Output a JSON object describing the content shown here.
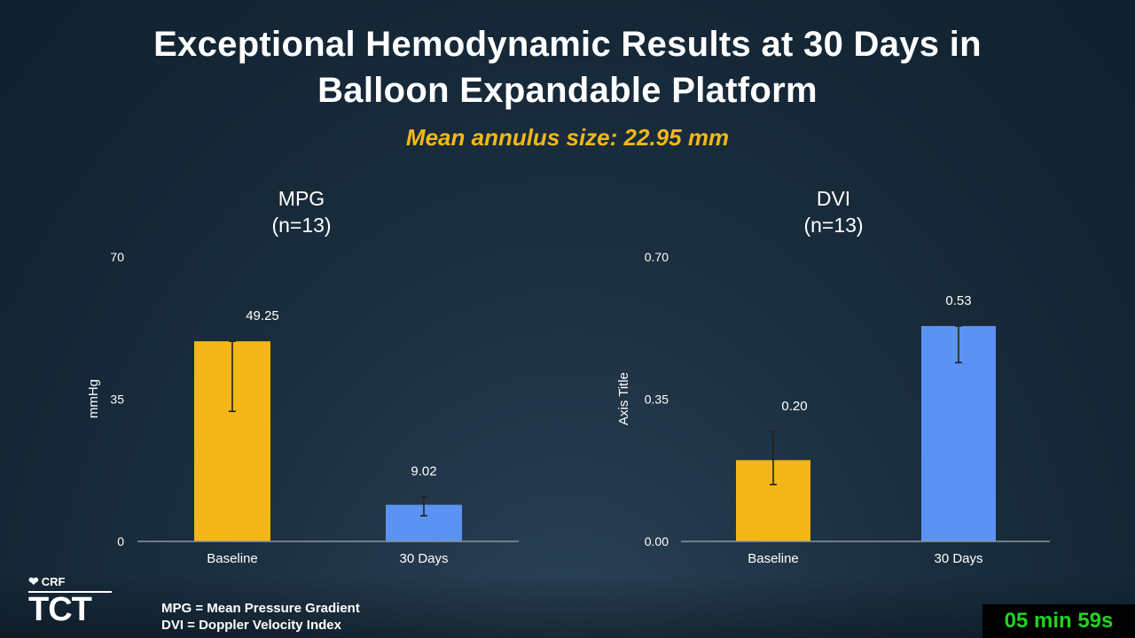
{
  "slide": {
    "title_line1": "Exceptional Hemodynamic Results at 30 Days in",
    "title_line2": "Balloon Expandable Platform",
    "subtitle": "Mean annulus size: 22.95 mm"
  },
  "chart_data": [
    {
      "type": "bar",
      "title": "MPG",
      "subtitle": "(n=13)",
      "ylabel": "mmHg",
      "xlabel": "",
      "ylim": [
        0,
        70
      ],
      "yticks": [
        "0",
        "35",
        "70"
      ],
      "yticks_values": [
        0,
        35,
        70
      ],
      "grid": false,
      "categories": [
        "Baseline",
        "30 Days"
      ],
      "values": [
        49.25,
        9.02
      ],
      "value_labels": [
        "49.25",
        "9.02"
      ],
      "error_low": [
        32.0,
        6.3
      ],
      "error_high": [
        49.25,
        11.0
      ],
      "colors": [
        "#f5b717",
        "#5b93f4"
      ]
    },
    {
      "type": "bar",
      "title": "DVI",
      "subtitle": "(n=13)",
      "ylabel": "Axis Title",
      "xlabel": "",
      "ylim": [
        0,
        0.7
      ],
      "yticks": [
        "0.00",
        "0.35",
        "0.70"
      ],
      "yticks_values": [
        0,
        0.35,
        0.7
      ],
      "grid": false,
      "categories": [
        "Baseline",
        "30 Days"
      ],
      "values": [
        0.2,
        0.53
      ],
      "value_labels": [
        "0.20",
        "0.53"
      ],
      "error_low": [
        0.14,
        0.44
      ],
      "error_high": [
        0.27,
        0.53
      ],
      "colors": [
        "#f5b717",
        "#5b93f4"
      ]
    }
  ],
  "footer": {
    "logo_crf": "CRF",
    "logo_tct": "TCT",
    "abbr_line1": "MPG = Mean Pressure Gradient",
    "abbr_line2": "DVI = Doppler Velocity Index",
    "timer": "05 min 59s"
  }
}
